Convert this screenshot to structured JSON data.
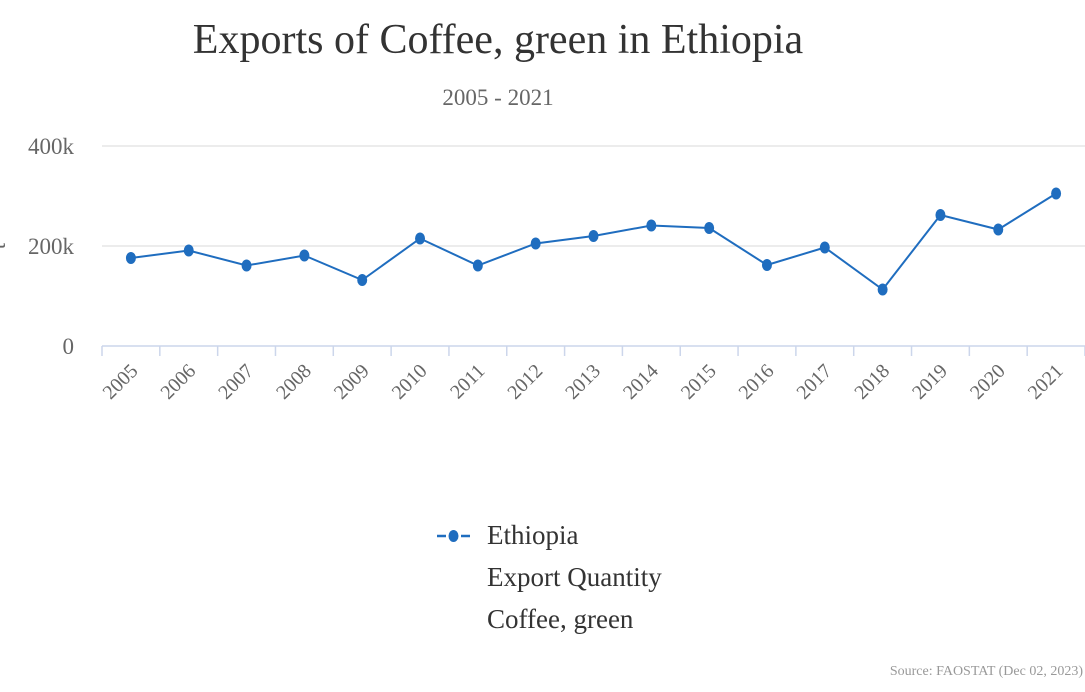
{
  "chart_data": {
    "type": "line",
    "title": "Exports of Coffee, green in Ethiopia",
    "subtitle": "2005 - 2021",
    "ylabel": "t",
    "categories": [
      "2005",
      "2006",
      "2007",
      "2008",
      "2009",
      "2010",
      "2011",
      "2012",
      "2013",
      "2014",
      "2015",
      "2016",
      "2017",
      "2018",
      "2019",
      "2020",
      "2021"
    ],
    "series": [
      {
        "name": "Ethiopia",
        "values": [
          176000,
          191000,
          161000,
          181000,
          132000,
          215000,
          161000,
          205000,
          220000,
          241000,
          236000,
          162000,
          197000,
          113000,
          262000,
          233000,
          305000
        ],
        "color": "#1f6dbf"
      }
    ],
    "ylim": [
      0,
      400000
    ],
    "y_ticks": [
      {
        "value": 0,
        "label": "0"
      },
      {
        "value": 200000,
        "label": "200k"
      },
      {
        "value": 400000,
        "label": "400k"
      }
    ],
    "grid": true,
    "legend": {
      "placement": "bottom-center",
      "lines": [
        "Ethiopia",
        "Export Quantity",
        "Coffee, green"
      ]
    },
    "source": "Source: FAOSTAT (Dec 02, 2023)"
  }
}
